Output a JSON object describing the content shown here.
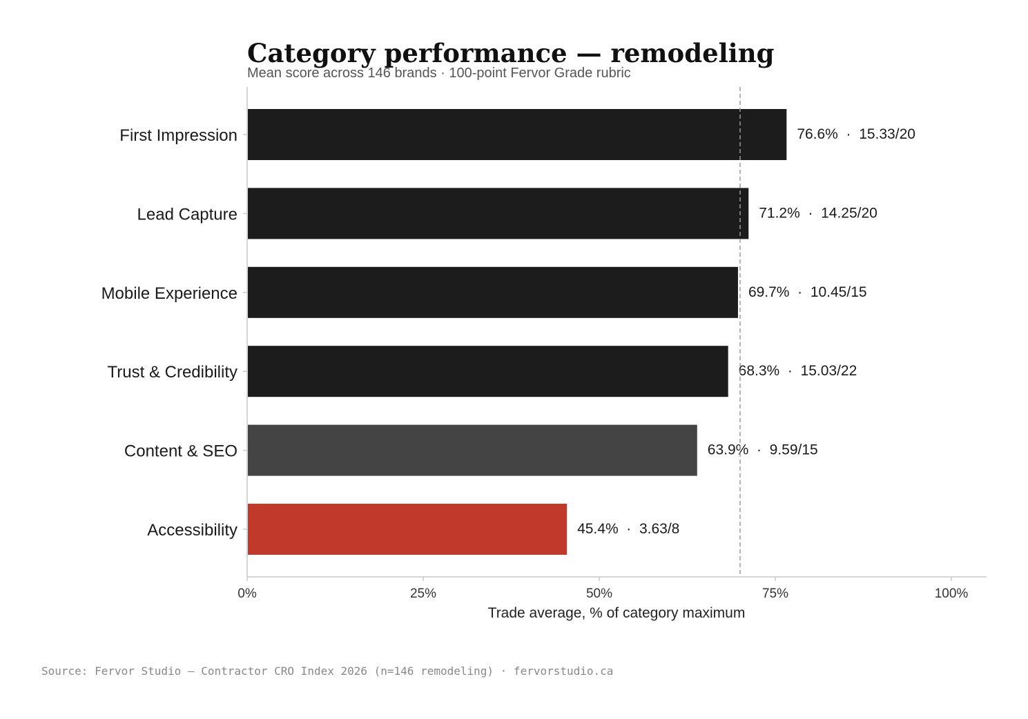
{
  "chart_data": {
    "type": "bar",
    "orientation": "horizontal",
    "title": "Category performance — remodeling",
    "subtitle": "Mean score across 146 brands · 100-point Fervor Grade rubric",
    "xlabel": "Trade average, % of category maximum",
    "ylabel": "",
    "xlim": [
      0,
      105
    ],
    "xticks": [
      {
        "value": 0,
        "label": "0%"
      },
      {
        "value": 25,
        "label": "25%"
      },
      {
        "value": 50,
        "label": "50%"
      },
      {
        "value": 75,
        "label": "75%"
      },
      {
        "value": 100,
        "label": "100%"
      }
    ],
    "reference_line": {
      "value": 70,
      "style": "dashed"
    },
    "bars": [
      {
        "category": "First Impression",
        "value": 76.6,
        "label": "76.6%  ·  15.33/20",
        "color": "#1c1c1c"
      },
      {
        "category": "Lead Capture",
        "value": 71.2,
        "label": "71.2%  ·  14.25/20",
        "color": "#1c1c1c"
      },
      {
        "category": "Mobile Experience",
        "value": 69.7,
        "label": "69.7%  ·  10.45/15",
        "color": "#1c1c1c"
      },
      {
        "category": "Trust & Credibility",
        "value": 68.3,
        "label": "68.3%  ·  15.03/22",
        "color": "#1c1c1c"
      },
      {
        "category": "Content & SEO",
        "value": 63.9,
        "label": "63.9%  ·  9.59/15",
        "color": "#444444"
      },
      {
        "category": "Accessibility",
        "value": 45.4,
        "label": "45.4%  ·  3.63/8",
        "color": "#c0392b"
      }
    ],
    "grid": false,
    "legend": "none"
  },
  "source": "Source: Fervor Studio — Contractor CRO Index 2026 (n=146 remodeling) · fervorstudio.ca"
}
